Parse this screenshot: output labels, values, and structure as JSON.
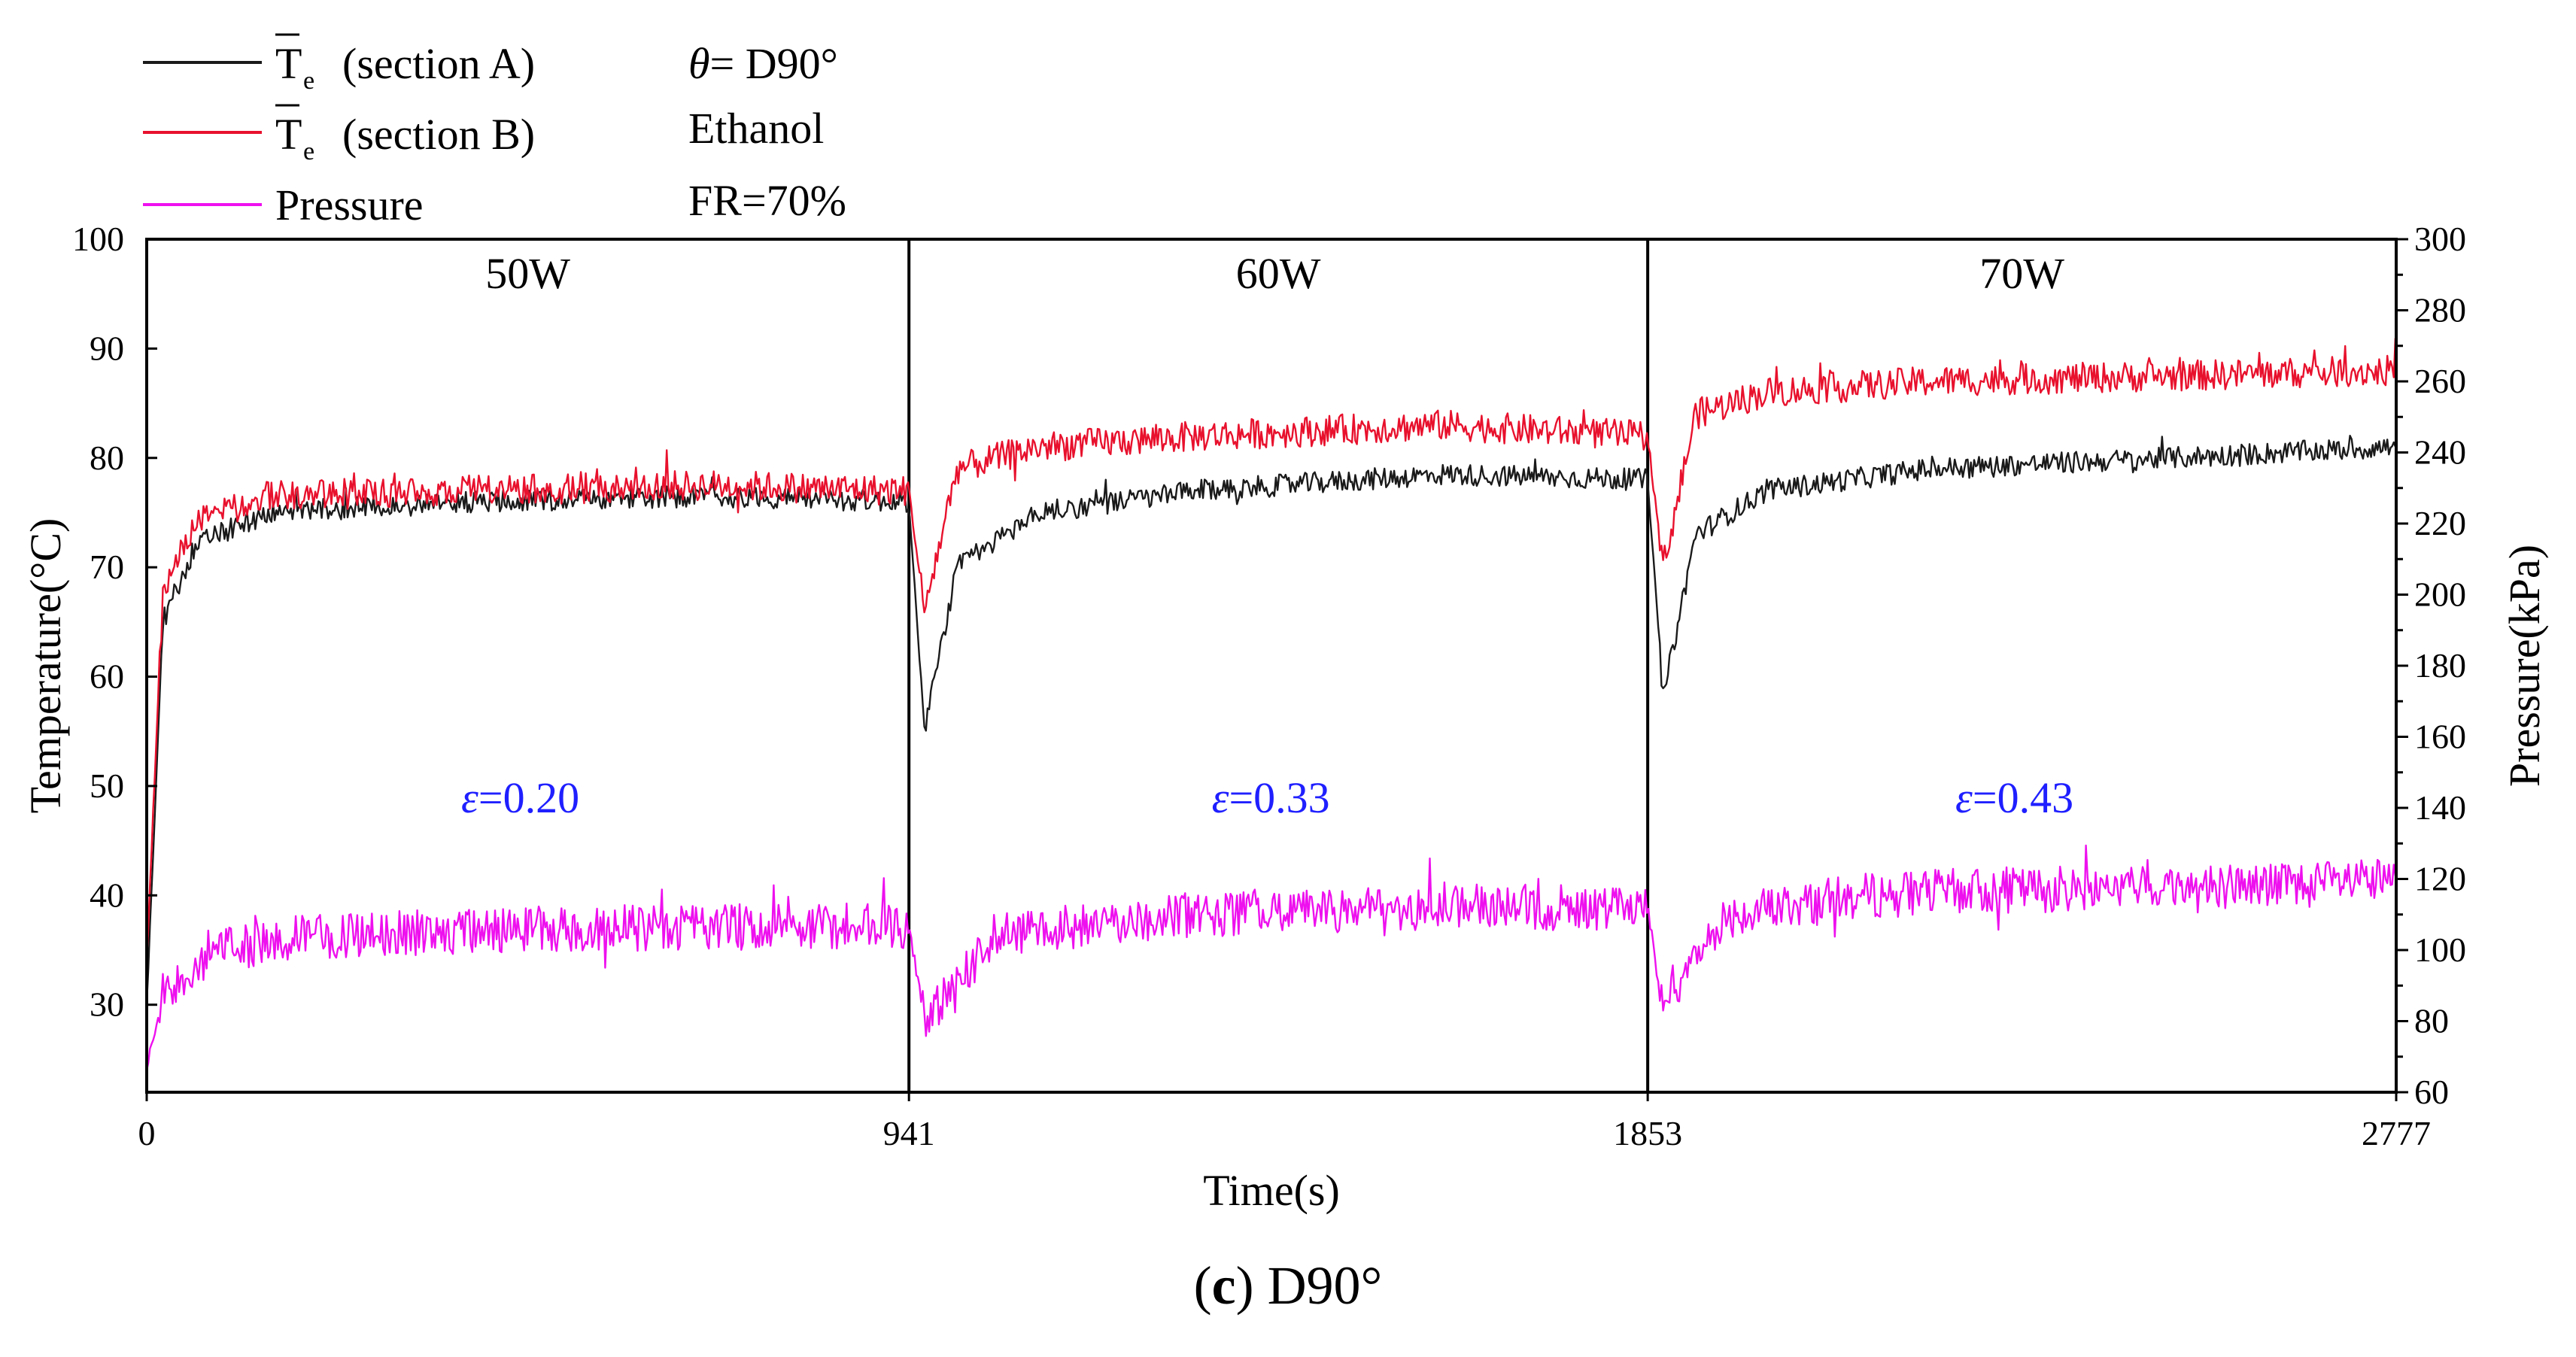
{
  "legend": {
    "entries": [
      {
        "symbol": "T",
        "subscript": "e",
        "suffix": "(section A)",
        "color": "#1a1a1a"
      },
      {
        "symbol": "T",
        "subscript": "e",
        "suffix": "(section B)",
        "color": "#e8112d"
      },
      {
        "label": "Pressure",
        "color": "#ee10ee"
      }
    ],
    "conditions": {
      "theta_symbol": "θ",
      "theta_value": "= D90°",
      "fluid": "Ethanol",
      "fill_ratio": "FR=70%"
    }
  },
  "caption": {
    "letter": "c",
    "text": "D90°"
  },
  "chart_data": {
    "type": "line",
    "title": "",
    "xlabel": "Time(s)",
    "ylabel_left": "Temperature(°C)",
    "ylabel_right": "Pressure(kPa)",
    "xlim": [
      0,
      2777
    ],
    "ylim_left": [
      22,
      100
    ],
    "ylim_right": [
      60,
      300
    ],
    "x_ticks": [
      "0",
      "941",
      "1853",
      "2777"
    ],
    "y_left_ticks": [
      "30",
      "40",
      "50",
      "60",
      "70",
      "80",
      "90",
      "100"
    ],
    "y_right_ticks": [
      "60",
      "80",
      "100",
      "120",
      "140",
      "160",
      "180",
      "200",
      "220",
      "240",
      "260",
      "280",
      "300"
    ],
    "segment_boundaries": [
      941,
      1853
    ],
    "segment_labels": [
      "50W",
      "60W",
      "70W"
    ],
    "efficiency_labels": [
      {
        "symbol": "ε",
        "value": "=0.20",
        "color": "#1f1fff"
      },
      {
        "symbol": "ε",
        "value": "=0.33",
        "color": "#1f1fff"
      },
      {
        "symbol": "ε",
        "value": "=0.43",
        "color": "#1f1fff"
      }
    ],
    "series": [
      {
        "name": "Te (section A)",
        "axis": "left",
        "color": "#1a1a1a",
        "x": [
          0,
          20,
          60,
          150,
          400,
          700,
          941,
          960,
          1000,
          1100,
          1300,
          1600,
          1853,
          1872,
          1912,
          2000,
          2200,
          2500,
          2777
        ],
        "values": [
          30,
          65,
          72,
          75,
          76,
          76.5,
          76,
          55,
          70,
          75,
          77,
          78.5,
          78,
          58,
          73,
          77,
          79,
          80,
          81
        ],
        "noise": 1.0
      },
      {
        "name": "Te (section B)",
        "axis": "left",
        "color": "#e8112d",
        "x": [
          0,
          20,
          60,
          150,
          400,
          700,
          941,
          960,
          1000,
          1100,
          1300,
          1600,
          1853,
          1872,
          1912,
          2000,
          2200,
          2500,
          2777
        ],
        "values": [
          34,
          68,
          74,
          76.5,
          77,
          77.5,
          77,
          66,
          79,
          81,
          82,
          83,
          82,
          70,
          84,
          86,
          87,
          87.5,
          88
        ],
        "noise": 1.4
      },
      {
        "name": "Pressure",
        "axis": "right",
        "color": "#ee10ee",
        "x": [
          0,
          20,
          80,
          200,
          500,
          941,
          960,
          1050,
          1300,
          1600,
          1853,
          1870,
          1950,
          2150,
          2500,
          2777
        ],
        "values": [
          66,
          88,
          100,
          104,
          106,
          107,
          80,
          105,
          110,
          112,
          112,
          84,
          110,
          116,
          118,
          119
        ],
        "noise": 6.5
      }
    ]
  }
}
